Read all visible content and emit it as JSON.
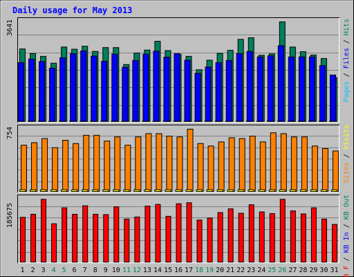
{
  "chart_data": {
    "type": "bar",
    "title": "Daily usage for May 2013",
    "categories": [
      "1",
      "2",
      "3",
      "4",
      "5",
      "6",
      "7",
      "8",
      "9",
      "10",
      "11",
      "12",
      "13",
      "14",
      "15",
      "16",
      "17",
      "18",
      "19",
      "20",
      "21",
      "22",
      "23",
      "24",
      "25",
      "26",
      "27",
      "28",
      "29",
      "30",
      "31"
    ],
    "weekend_days": [
      "4",
      "5",
      "11",
      "12",
      "18",
      "19",
      "25",
      "26"
    ],
    "panels": [
      {
        "id": "hits",
        "max_label": "3641",
        "ylim": [
          0,
          3641
        ],
        "legend": [
          {
            "text": "Pages",
            "color": "#00c0ff"
          },
          {
            "text": "Files",
            "color": "#0000ff"
          },
          {
            "text": "Hits",
            "color": "#00805c"
          }
        ],
        "separator": " / ",
        "series": [
          {
            "name": "Hits",
            "color": "#00805c",
            "values": [
              2650,
              2480,
              2380,
              2130,
              2720,
              2640,
              2750,
              2560,
              2700,
              2700,
              2080,
              2500,
              2610,
              2930,
              2590,
              2450,
              2380,
              1890,
              2240,
              2490,
              2600,
              3000,
              3060,
              2420,
              2470,
              3640,
              2720,
              2550,
              2430,
              2300,
              1600
            ]
          },
          {
            "name": "Files",
            "color": "#0000ff",
            "values": [
              2150,
              2280,
              2190,
              1950,
              2330,
              2480,
              2580,
              2390,
              2200,
              2460,
              1980,
              2230,
              2460,
              2570,
              2350,
              2480,
              2240,
              1760,
              1990,
              2150,
              2230,
              2480,
              2560,
              2360,
              2400,
              2770,
              2360,
              2360,
              2360,
              2040,
              1700
            ]
          },
          {
            "name": "Pages",
            "color": "#00c0ff",
            "values": [
              10,
              10,
              10,
              10,
              10,
              10,
              10,
              10,
              10,
              10,
              10,
              10,
              10,
              10,
              10,
              10,
              10,
              10,
              10,
              10,
              10,
              10,
              10,
              10,
              10,
              10,
              10,
              10,
              10,
              10,
              10
            ]
          }
        ]
      },
      {
        "id": "visits",
        "max_label": "754",
        "ylim": [
          0,
          754
        ],
        "legend": [
          {
            "text": "Sites",
            "color": "#ff8000"
          },
          {
            "text": "Visits",
            "color": "#ffff00"
          }
        ],
        "separator": " / ",
        "series": [
          {
            "name": "Visits",
            "color": "#ff8000",
            "values": [
              560,
              590,
              640,
              530,
              620,
              580,
              680,
              680,
              610,
              660,
              560,
              660,
              700,
              700,
              670,
              660,
              754,
              580,
              550,
              600,
              650,
              640,
              670,
              600,
              710,
              700,
              660,
              660,
              550,
              520,
              490
            ]
          },
          {
            "name": "Sites",
            "color": "#ffff00",
            "values": [
              20,
              20,
              20,
              20,
              20,
              20,
              20,
              20,
              20,
              20,
              20,
              20,
              20,
              20,
              20,
              20,
              20,
              20,
              20,
              20,
              20,
              20,
              20,
              20,
              20,
              20,
              20,
              20,
              20,
              20,
              20
            ]
          }
        ]
      },
      {
        "id": "kbytes",
        "max_label": "185675",
        "ylim": [
          0,
          185675
        ],
        "legend": [
          {
            "text": "KB F",
            "color": "#ff0000"
          },
          {
            "text": "KB In",
            "color": "#0000ff"
          },
          {
            "text": "KB Out",
            "color": "#00805c"
          }
        ],
        "separator": " / ",
        "series": [
          {
            "name": "KB F",
            "color": "#ff0000",
            "values": [
              132000,
              141000,
              185000,
              113000,
              160000,
              141000,
              166000,
              141000,
              140000,
              163000,
              127000,
              133000,
              165000,
              170000,
              135000,
              172000,
              175000,
              124000,
              130000,
              146000,
              157000,
              144000,
              169000,
              148000,
              143000,
              185000,
              151000,
              142000,
              160000,
              127000,
              111000
            ]
          }
        ]
      }
    ],
    "grid": true
  }
}
